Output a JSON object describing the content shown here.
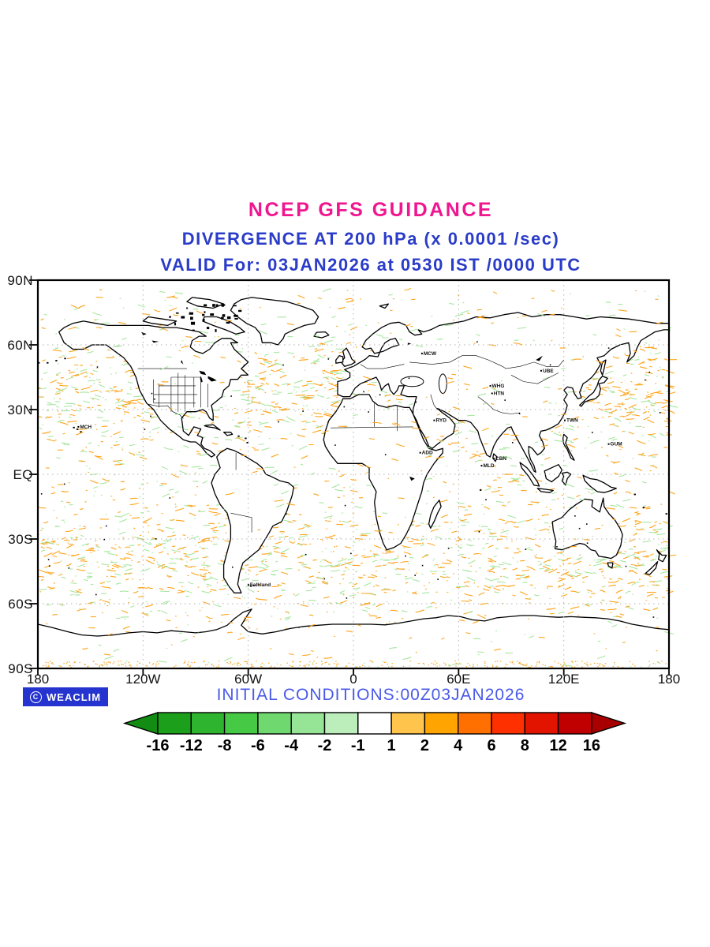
{
  "header": {
    "title": "NCEP GFS GUIDANCE",
    "subtitle": "DIVERGENCE AT 200 hPa (x 0.0001 /sec)",
    "valid_line": "VALID For: 03JAN2026 at 0530 IST /0000 UTC",
    "title_color": "#F01690",
    "subtitle_color": "#2A3CC8"
  },
  "map": {
    "y_axis_labels": [
      "90N",
      "60N",
      "30N",
      "EQ",
      "30S",
      "60S",
      "90S"
    ],
    "x_axis_labels": [
      "180",
      "120W",
      "60W",
      "0",
      "60E",
      "120E",
      "180"
    ],
    "gridline_color": "#b0b0b0",
    "coast_color": "#000000",
    "positive_speckle_color": "#FFA41B",
    "negative_speckle_color": "#A8E6A0",
    "station_labels": [
      {
        "label": "MCH",
        "lon": -156,
        "lat": 22
      },
      {
        "label": "MCW",
        "lon": 40,
        "lat": 56
      },
      {
        "label": "UBE",
        "lon": 108,
        "lat": 48
      },
      {
        "label": "WHG",
        "lon": 79,
        "lat": 41
      },
      {
        "label": "HTN",
        "lon": 80,
        "lat": 37.5
      },
      {
        "label": "RYD",
        "lon": 47,
        "lat": 25
      },
      {
        "label": "ADD",
        "lon": 39,
        "lat": 10
      },
      {
        "label": "MLD",
        "lon": 74,
        "lat": 4
      },
      {
        "label": "CBN",
        "lon": 81,
        "lat": 7.3
      },
      {
        "label": "TWN",
        "lon": 121.5,
        "lat": 25
      },
      {
        "label": "GUM",
        "lon": 146.5,
        "lat": 14
      },
      {
        "label": "Falkland",
        "lon": -59,
        "lat": -51.3
      }
    ]
  },
  "footer": {
    "initial_conditions": "INITIAL CONDITIONS:00Z03JAN2026",
    "initial_color": "#4A5AE8",
    "logo_text": "WEACLIM",
    "logo_symbol": "C",
    "logo_bg": "#2533CF"
  },
  "colorbar": {
    "labels": [
      "-16",
      "-12",
      "-8",
      "-6",
      "-4",
      "-2",
      "-1",
      "1",
      "2",
      "4",
      "6",
      "8",
      "12",
      "16"
    ],
    "left_arrow_color": "#128c12",
    "right_arrow_color": "#a80000",
    "segment_colors": [
      "#1ca01c",
      "#2fb42f",
      "#46ca46",
      "#6fd86f",
      "#96e496",
      "#bceebc",
      "#ffffff",
      "#ffc44c",
      "#ffa400",
      "#ff7000",
      "#ff3000",
      "#e21400",
      "#c00000"
    ]
  },
  "chart_data": {
    "type": "contour-map",
    "title": "NCEP GFS GUIDANCE",
    "variable": "DIVERGENCE AT 200 hPa",
    "units": "x 0.0001 /sec",
    "valid": "03JAN2026 at 0530 IST /0000 UTC",
    "initial_conditions": "00Z03JAN2026",
    "projection": "global equirectangular",
    "lat_ticks": [
      "90N",
      "60N",
      "30N",
      "EQ",
      "30S",
      "60S",
      "90S"
    ],
    "lon_ticks": [
      "180",
      "120W",
      "60W",
      "0",
      "60E",
      "120E",
      "180"
    ],
    "contour_levels": [
      -16,
      -12,
      -8,
      -6,
      -4,
      -2,
      -1,
      1,
      2,
      4,
      6,
      8,
      12,
      16
    ],
    "negative_values_color_theme": "greens (convergence)",
    "positive_values_color_theme": "orange-reds (divergence)",
    "grid": "dotted 30-degree graticule"
  }
}
